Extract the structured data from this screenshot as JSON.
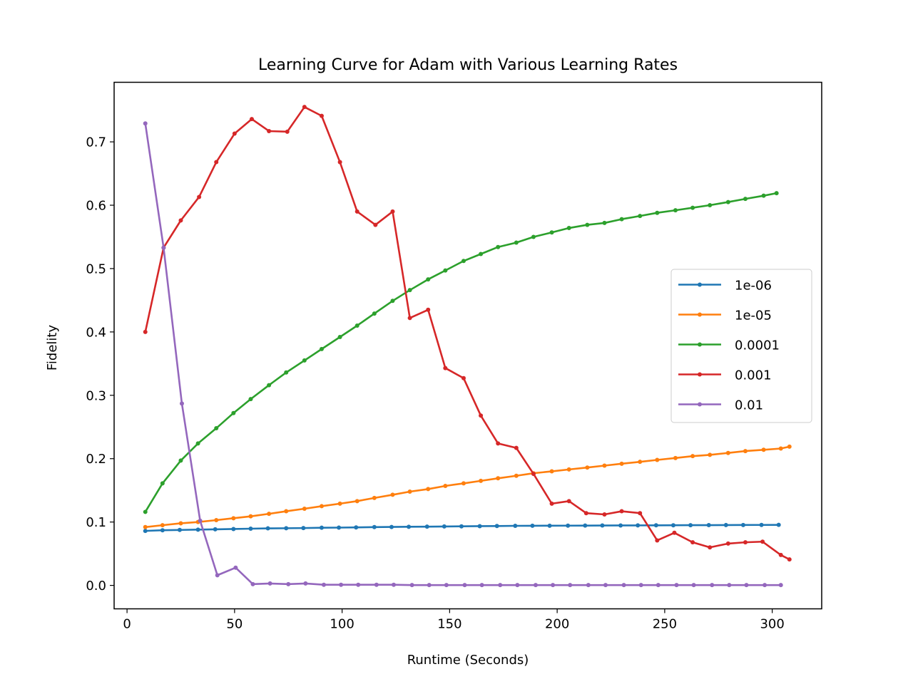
{
  "chart_data": {
    "type": "line",
    "title": "Learning Curve for Adam with Various Learning Rates",
    "xlabel": "Runtime (Seconds)",
    "ylabel": "Fidelity",
    "xlim": [
      -6,
      323
    ],
    "ylim": [
      -0.037,
      0.794
    ],
    "xticks": [
      0,
      50,
      100,
      150,
      200,
      250,
      300
    ],
    "yticks": [
      0.0,
      0.1,
      0.2,
      0.3,
      0.4,
      0.5,
      0.6,
      0.7
    ],
    "ytick_labels": [
      "0.0",
      "0.1",
      "0.2",
      "0.3",
      "0.4",
      "0.5",
      "0.6",
      "0.7"
    ],
    "grid": false,
    "legend_position": "center-right",
    "marker": "dot",
    "series": [
      {
        "name": "1e-06",
        "color": "#1f77b4",
        "x": [
          8.5,
          16.5,
          24.5,
          33,
          41,
          49.5,
          57.5,
          65.5,
          74,
          82,
          90.5,
          98.5,
          106.5,
          115,
          123,
          131,
          139.5,
          147.5,
          155.5,
          164,
          172,
          180.5,
          188.5,
          196.5,
          205,
          213,
          221,
          229.5,
          237.5,
          246,
          254,
          262,
          270.5,
          278.5,
          286.5,
          295,
          303
        ],
        "y": [
          0.086,
          0.087,
          0.0875,
          0.088,
          0.0885,
          0.089,
          0.0895,
          0.09,
          0.0902,
          0.0905,
          0.091,
          0.0912,
          0.0915,
          0.092,
          0.0922,
          0.0925,
          0.0927,
          0.093,
          0.0932,
          0.0935,
          0.0937,
          0.094,
          0.0941,
          0.0942,
          0.0943,
          0.0944,
          0.0945,
          0.0946,
          0.0947,
          0.0948,
          0.0949,
          0.095,
          0.0951,
          0.0952,
          0.0953,
          0.0954,
          0.0955
        ]
      },
      {
        "name": "1e-05",
        "color": "#ff7f0e",
        "x": [
          8.5,
          16.5,
          25,
          33,
          41.5,
          49.5,
          57.5,
          66,
          74,
          82.5,
          90.5,
          99,
          107,
          115,
          123.5,
          131.5,
          140,
          148,
          156.5,
          164.5,
          172.5,
          181,
          189,
          197.5,
          205.5,
          214,
          222,
          230,
          238.5,
          246.5,
          255,
          263,
          271,
          279.5,
          287.5,
          296,
          304,
          308
        ],
        "y": [
          0.092,
          0.095,
          0.098,
          0.1,
          0.103,
          0.106,
          0.109,
          0.113,
          0.117,
          0.121,
          0.125,
          0.129,
          0.133,
          0.138,
          0.143,
          0.148,
          0.152,
          0.157,
          0.161,
          0.165,
          0.169,
          0.173,
          0.177,
          0.18,
          0.183,
          0.186,
          0.189,
          0.192,
          0.195,
          0.198,
          0.201,
          0.204,
          0.206,
          0.209,
          0.212,
          0.214,
          0.216,
          0.219
        ]
      },
      {
        "name": "0.0001",
        "color": "#2ca02c",
        "x": [
          8.5,
          16.5,
          25,
          33,
          41.5,
          49.5,
          57.5,
          66,
          74,
          82.5,
          90.5,
          99,
          107,
          115,
          123.5,
          131.5,
          140,
          148,
          156.5,
          164.5,
          172.5,
          181,
          189,
          197.5,
          205.5,
          214,
          222,
          230,
          238.5,
          246.5,
          255,
          263,
          271,
          279.5,
          287.5,
          296,
          302
        ],
        "y": [
          0.116,
          0.161,
          0.197,
          0.224,
          0.248,
          0.272,
          0.294,
          0.316,
          0.336,
          0.355,
          0.373,
          0.392,
          0.41,
          0.429,
          0.449,
          0.466,
          0.483,
          0.497,
          0.512,
          0.523,
          0.534,
          0.541,
          0.55,
          0.557,
          0.564,
          0.569,
          0.572,
          0.578,
          0.583,
          0.588,
          0.592,
          0.596,
          0.6,
          0.605,
          0.61,
          0.615,
          0.619
        ]
      },
      {
        "name": "0.001",
        "color": "#d62728",
        "x": [
          8.5,
          17,
          25,
          33.5,
          41.5,
          50,
          58,
          66,
          74.5,
          82.5,
          90.5,
          99,
          107,
          115.5,
          123.5,
          131.5,
          140,
          148,
          156.5,
          164.5,
          172.5,
          181,
          189,
          197.5,
          205.5,
          213.5,
          222,
          230,
          238.5,
          246.5,
          254.5,
          263,
          271,
          279.5,
          287.5,
          295.5,
          304,
          308
        ],
        "y": [
          0.4,
          0.533,
          0.576,
          0.613,
          0.668,
          0.713,
          0.736,
          0.717,
          0.716,
          0.755,
          0.741,
          0.668,
          0.59,
          0.569,
          0.59,
          0.422,
          0.435,
          0.343,
          0.327,
          0.268,
          0.224,
          0.217,
          0.176,
          0.129,
          0.133,
          0.114,
          0.112,
          0.117,
          0.114,
          0.071,
          0.083,
          0.068,
          0.06,
          0.066,
          0.068,
          0.069,
          0.048,
          0.041
        ]
      },
      {
        "name": "0.01",
        "color": "#9467bd",
        "x": [
          8.5,
          17,
          25.5,
          34,
          42,
          50.5,
          58.5,
          66.5,
          75,
          83,
          91.5,
          99.5,
          107.5,
          116,
          124,
          132.5,
          140.5,
          148.5,
          157,
          165,
          173.5,
          181.5,
          190,
          198,
          206,
          214.5,
          222.5,
          231,
          239,
          247,
          255.5,
          263.5,
          272,
          280,
          288,
          296.5,
          304
        ],
        "y": [
          0.729,
          0.533,
          0.287,
          0.102,
          0.016,
          0.028,
          0.002,
          0.003,
          0.002,
          0.003,
          0.001,
          0.001,
          0.001,
          0.001,
          0.001,
          0.0005,
          0.0005,
          0.0005,
          0.0005,
          0.0005,
          0.0005,
          0.0005,
          0.0005,
          0.0005,
          0.0005,
          0.0005,
          0.0005,
          0.0005,
          0.0005,
          0.0005,
          0.0005,
          0.0005,
          0.0005,
          0.0005,
          0.0005,
          0.0005,
          0.0005
        ]
      }
    ]
  }
}
